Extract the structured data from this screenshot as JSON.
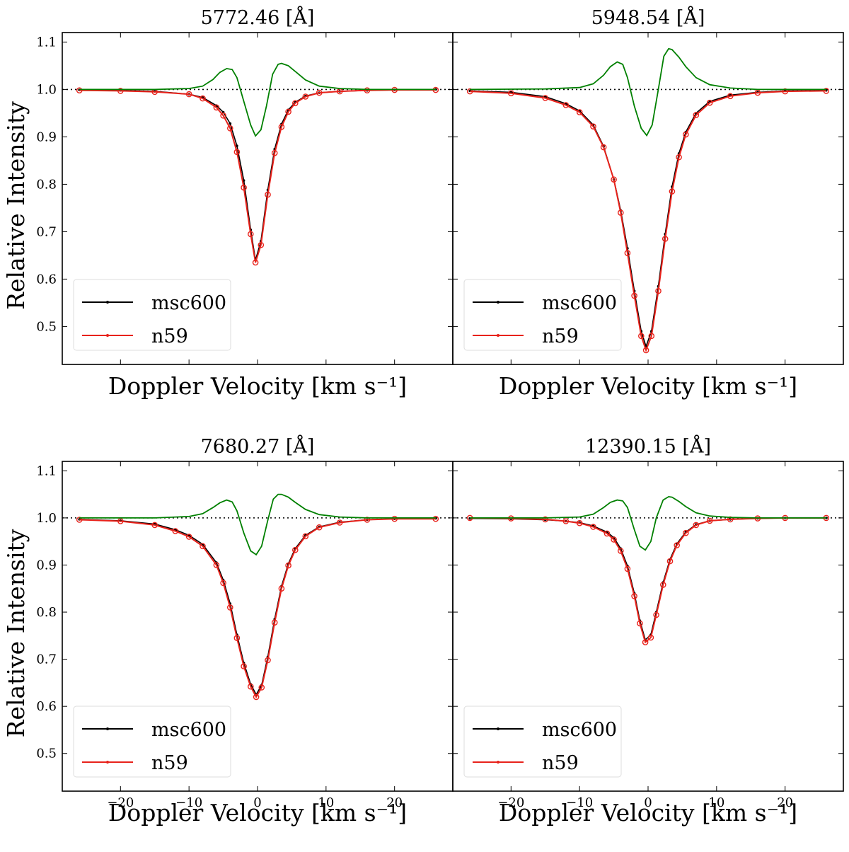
{
  "chart_data": [
    {
      "type": "line",
      "title": "5772.46 [Å]",
      "xlabel": "Doppler Velocity [km s⁻¹]",
      "ylabel": "Relative Intensity",
      "xlim": [
        -28.5,
        28.5
      ],
      "ylim": [
        0.42,
        1.12
      ],
      "x_ticks": [
        -20,
        -10,
        0,
        10,
        20
      ],
      "x_tick_labels_shown": false,
      "y_ticks": [
        0.5,
        0.6,
        0.7,
        0.8,
        0.9,
        1.0,
        1.1
      ],
      "y_tick_labels": [
        "0.5",
        "0.6",
        "0.7",
        "0.8",
        "0.9",
        "1.0",
        "1.1"
      ],
      "reference_line": 1.0,
      "legend_position": "lower left",
      "legend": [
        {
          "name": "msc600",
          "color": "#000000"
        },
        {
          "name": "n59",
          "color": "#e8221b"
        }
      ],
      "series": [
        {
          "name": "msc600",
          "color": "#000000",
          "x": [
            -26,
            -20,
            -15,
            -10,
            -8,
            -6,
            -5,
            -4,
            -3,
            -2,
            -1,
            -0.3,
            0.5,
            1.5,
            2.5,
            3.5,
            4.5,
            5.5,
            7,
            9,
            12,
            16,
            20,
            26
          ],
          "y": [
            0.999,
            0.998,
            0.996,
            0.99,
            0.983,
            0.966,
            0.952,
            0.928,
            0.881,
            0.808,
            0.704,
            0.64,
            0.68,
            0.788,
            0.874,
            0.927,
            0.957,
            0.973,
            0.986,
            0.993,
            0.996,
            0.998,
            0.999,
            1.0
          ]
        },
        {
          "name": "n59",
          "color": "#e8221b",
          "x": [
            -26,
            -20,
            -15,
            -10,
            -8,
            -6,
            -5,
            -4,
            -3,
            -2,
            -1,
            -0.3,
            0.5,
            1.5,
            2.5,
            3.5,
            4.5,
            5.5,
            7,
            9,
            12,
            16,
            20,
            26
          ],
          "y": [
            0.998,
            0.997,
            0.995,
            0.99,
            0.981,
            0.962,
            0.945,
            0.918,
            0.868,
            0.793,
            0.695,
            0.635,
            0.672,
            0.778,
            0.866,
            0.921,
            0.953,
            0.971,
            0.985,
            0.993,
            0.996,
            0.998,
            0.999,
            0.999
          ]
        },
        {
          "name": "",
          "color": "#008000",
          "x": [
            -26,
            -15,
            -10,
            -8,
            -6.5,
            -5.5,
            -4.5,
            -3.7,
            -3,
            -2,
            -1,
            -0.3,
            0.5,
            1.3,
            2.2,
            3,
            3.5,
            4.5,
            5.5,
            7,
            9,
            12,
            16,
            26
          ],
          "y": [
            1.0,
            1.0,
            1.002,
            1.007,
            1.021,
            1.036,
            1.044,
            1.042,
            1.025,
            0.975,
            0.925,
            0.902,
            0.915,
            0.965,
            1.032,
            1.053,
            1.055,
            1.05,
            1.038,
            1.02,
            1.007,
            1.002,
            1.0,
            1.0
          ]
        }
      ]
    },
    {
      "type": "line",
      "title": "5948.54 [Å]",
      "xlabel": "Doppler Velocity [km s⁻¹]",
      "ylabel": "",
      "xlim": [
        -28.5,
        28.5
      ],
      "ylim": [
        0.42,
        1.12
      ],
      "x_ticks": [
        -20,
        -10,
        0,
        10,
        20
      ],
      "x_tick_labels_shown": false,
      "y_ticks": [
        0.5,
        0.6,
        0.7,
        0.8,
        0.9,
        1.0,
        1.1
      ],
      "y_tick_labels_shown": false,
      "reference_line": 1.0,
      "legend_position": "lower left",
      "legend": [
        {
          "name": "msc600",
          "color": "#000000"
        },
        {
          "name": "n59",
          "color": "#e8221b"
        }
      ],
      "series": [
        {
          "name": "msc600",
          "color": "#000000",
          "x": [
            -26,
            -20,
            -15,
            -12,
            -10,
            -8,
            -6.5,
            -5,
            -4,
            -3,
            -2,
            -1,
            -0.3,
            0.5,
            1.5,
            2.5,
            3.5,
            4.5,
            5.5,
            7,
            9,
            12,
            16,
            20,
            26
          ],
          "y": [
            0.997,
            0.994,
            0.985,
            0.97,
            0.955,
            0.925,
            0.88,
            0.81,
            0.745,
            0.665,
            0.575,
            0.49,
            0.458,
            0.49,
            0.585,
            0.695,
            0.795,
            0.865,
            0.91,
            0.95,
            0.975,
            0.988,
            0.994,
            0.997,
            0.998
          ]
        },
        {
          "name": "n59",
          "color": "#e8221b",
          "x": [
            -26,
            -20,
            -15,
            -12,
            -10,
            -8,
            -6.5,
            -5,
            -4,
            -3,
            -2,
            -1,
            -0.3,
            0.5,
            1.5,
            2.5,
            3.5,
            4.5,
            5.5,
            7,
            9,
            12,
            16,
            20,
            26
          ],
          "y": [
            0.996,
            0.992,
            0.982,
            0.967,
            0.952,
            0.922,
            0.878,
            0.81,
            0.74,
            0.655,
            0.565,
            0.48,
            0.45,
            0.48,
            0.575,
            0.685,
            0.785,
            0.857,
            0.905,
            0.946,
            0.972,
            0.986,
            0.993,
            0.996,
            0.997
          ]
        },
        {
          "name": "",
          "color": "#008000",
          "x": [
            -26,
            -15,
            -10,
            -8,
            -6.5,
            -5.5,
            -4.5,
            -3.7,
            -3,
            -2,
            -1,
            -0.2,
            0.6,
            1.5,
            2.3,
            3,
            3.5,
            4.5,
            5.5,
            7,
            9,
            12,
            16,
            26
          ],
          "y": [
            1.0,
            1.001,
            1.004,
            1.012,
            1.03,
            1.048,
            1.058,
            1.053,
            1.025,
            0.965,
            0.918,
            0.903,
            0.925,
            1.0,
            1.07,
            1.086,
            1.084,
            1.068,
            1.048,
            1.025,
            1.01,
            1.003,
            1.0,
            1.0
          ]
        }
      ]
    },
    {
      "type": "line",
      "title": "7680.27 [Å]",
      "xlabel": "Doppler Velocity [km s⁻¹]",
      "ylabel": "Relative Intensity",
      "xlim": [
        -28.5,
        28.5
      ],
      "ylim": [
        0.42,
        1.12
      ],
      "x_ticks": [
        -20,
        -10,
        0,
        10,
        20
      ],
      "x_tick_labels": [
        "−20",
        "−10",
        "0",
        "10",
        "20"
      ],
      "y_ticks": [
        0.5,
        0.6,
        0.7,
        0.8,
        0.9,
        1.0,
        1.1
      ],
      "y_tick_labels": [
        "0.5",
        "0.6",
        "0.7",
        "0.8",
        "0.9",
        "1.0",
        "1.1"
      ],
      "reference_line": 1.0,
      "legend_position": "lower left",
      "legend": [
        {
          "name": "msc600",
          "color": "#000000"
        },
        {
          "name": "n59",
          "color": "#e8221b"
        }
      ],
      "series": [
        {
          "name": "msc600",
          "color": "#000000",
          "x": [
            -26,
            -20,
            -15,
            -12,
            -10,
            -8,
            -6,
            -5,
            -4,
            -3,
            -2,
            -1,
            -0.2,
            0.6,
            1.5,
            2.5,
            3.5,
            4.5,
            5.5,
            7,
            9,
            12,
            16,
            20,
            26
          ],
          "y": [
            0.997,
            0.994,
            0.987,
            0.975,
            0.963,
            0.944,
            0.905,
            0.868,
            0.818,
            0.752,
            0.692,
            0.647,
            0.625,
            0.645,
            0.705,
            0.785,
            0.855,
            0.903,
            0.935,
            0.963,
            0.981,
            0.991,
            0.996,
            0.998,
            0.999
          ]
        },
        {
          "name": "n59",
          "color": "#e8221b",
          "x": [
            -26,
            -20,
            -15,
            -12,
            -10,
            -8,
            -6,
            -5,
            -4,
            -3,
            -2,
            -1,
            -0.2,
            0.6,
            1.5,
            2.5,
            3.5,
            4.5,
            5.5,
            7,
            9,
            12,
            16,
            20,
            26
          ],
          "y": [
            0.996,
            0.993,
            0.985,
            0.972,
            0.96,
            0.94,
            0.9,
            0.862,
            0.81,
            0.745,
            0.685,
            0.642,
            0.62,
            0.64,
            0.698,
            0.778,
            0.85,
            0.899,
            0.932,
            0.961,
            0.98,
            0.99,
            0.996,
            0.998,
            0.998
          ]
        },
        {
          "name": "",
          "color": "#008000",
          "x": [
            -26,
            -15,
            -10,
            -8,
            -6.5,
            -5.5,
            -4.5,
            -3.7,
            -3,
            -2,
            -1,
            -0.2,
            0.6,
            1.5,
            2.3,
            3,
            3.5,
            4.5,
            5.5,
            7,
            9,
            12,
            16,
            26
          ],
          "y": [
            1.0,
            1.0,
            1.003,
            1.009,
            1.022,
            1.032,
            1.038,
            1.034,
            1.015,
            0.968,
            0.93,
            0.922,
            0.94,
            0.995,
            1.04,
            1.05,
            1.05,
            1.044,
            1.033,
            1.018,
            1.007,
            1.002,
            1.0,
            1.0
          ]
        }
      ]
    },
    {
      "type": "line",
      "title": "12390.15 [Å]",
      "xlabel": "Doppler Velocity [km s⁻¹]",
      "ylabel": "",
      "xlim": [
        -28.5,
        28.5
      ],
      "ylim": [
        0.42,
        1.12
      ],
      "x_ticks": [
        -20,
        -10,
        0,
        10,
        20
      ],
      "x_tick_labels": [
        "−20",
        "−10",
        "0",
        "10",
        "20"
      ],
      "y_ticks": [
        0.5,
        0.6,
        0.7,
        0.8,
        0.9,
        1.0,
        1.1
      ],
      "y_tick_labels_shown": false,
      "reference_line": 1.0,
      "legend_position": "lower left",
      "legend": [
        {
          "name": "msc600",
          "color": "#000000"
        },
        {
          "name": "n59",
          "color": "#e8221b"
        }
      ],
      "series": [
        {
          "name": "msc600",
          "color": "#000000",
          "x": [
            -26,
            -20,
            -15,
            -12,
            -10,
            -8,
            -6,
            -5,
            -4,
            -3,
            -2,
            -1.2,
            -0.4,
            0.4,
            1.2,
            2.2,
            3.2,
            4.2,
            5.5,
            7,
            9,
            12,
            16,
            20,
            26
          ],
          "y": [
            0.999,
            0.998,
            0.996,
            0.993,
            0.99,
            0.983,
            0.97,
            0.958,
            0.935,
            0.898,
            0.84,
            0.782,
            0.741,
            0.752,
            0.8,
            0.863,
            0.912,
            0.945,
            0.97,
            0.986,
            0.994,
            0.997,
            0.999,
            1.0,
            1.0
          ]
        },
        {
          "name": "n59",
          "color": "#e8221b",
          "x": [
            -26,
            -20,
            -15,
            -12,
            -10,
            -8,
            -6,
            -5,
            -4,
            -3,
            -2,
            -1.2,
            -0.4,
            0.4,
            1.2,
            2.2,
            3.2,
            4.2,
            5.5,
            7,
            9,
            12,
            16,
            20,
            26
          ],
          "y": [
            1.0,
            0.999,
            0.997,
            0.993,
            0.989,
            0.981,
            0.967,
            0.954,
            0.93,
            0.892,
            0.834,
            0.776,
            0.736,
            0.746,
            0.794,
            0.858,
            0.908,
            0.942,
            0.968,
            0.985,
            0.994,
            0.997,
            0.999,
            1.0,
            1.0
          ]
        },
        {
          "name": "",
          "color": "#008000",
          "x": [
            -26,
            -15,
            -10,
            -8,
            -6.5,
            -5.5,
            -4.5,
            -3.7,
            -3,
            -2,
            -1.2,
            -0.4,
            0.4,
            1.2,
            2.2,
            3,
            3.5,
            4.5,
            5.5,
            7,
            9,
            12,
            16,
            26
          ],
          "y": [
            1.0,
            1.0,
            1.002,
            1.008,
            1.022,
            1.033,
            1.038,
            1.036,
            1.022,
            0.975,
            0.94,
            0.932,
            0.95,
            1.0,
            1.038,
            1.045,
            1.044,
            1.035,
            1.024,
            1.011,
            1.004,
            1.001,
            1.0,
            1.0
          ]
        }
      ]
    }
  ]
}
